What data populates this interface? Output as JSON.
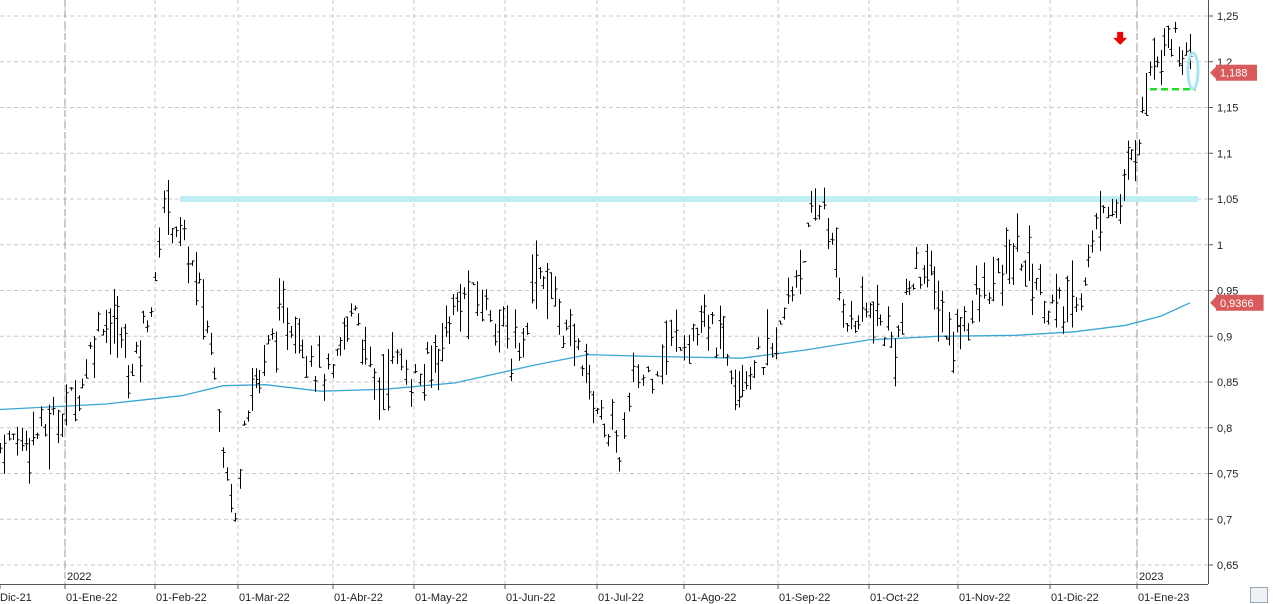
{
  "chart_data": {
    "type": "ohlc",
    "title": "",
    "xlabel": "",
    "ylabel": "",
    "ylim": [
      0.64,
      1.265
    ],
    "y_ticks": [
      {
        "value": 1.25,
        "label": "1,25"
      },
      {
        "value": 1.2,
        "label": "1,2"
      },
      {
        "value": 1.15,
        "label": "1,15"
      },
      {
        "value": 1.1,
        "label": "1,1"
      },
      {
        "value": 1.05,
        "label": "1,05"
      },
      {
        "value": 1.0,
        "label": "1"
      },
      {
        "value": 0.95,
        "label": "0,95"
      },
      {
        "value": 0.9,
        "label": "0,9"
      },
      {
        "value": 0.85,
        "label": "0,85"
      },
      {
        "value": 0.8,
        "label": "0,8"
      },
      {
        "value": 0.75,
        "label": "0,75"
      },
      {
        "value": 0.7,
        "label": "0,7"
      },
      {
        "value": 0.65,
        "label": "0,65"
      }
    ],
    "x_ticks": [
      "Dic-21",
      "01-Ene-22",
      "01-Feb-22",
      "01-Mar-22",
      "01-Abr-22",
      "01-May-22",
      "01-Jun-22",
      "01-Jul-22",
      "01-Ago-22",
      "01-Sep-22",
      "01-Oct-22",
      "01-Nov-22",
      "01-Dic-22",
      "01-Ene-23"
    ],
    "year_markers": [
      {
        "label": "2022",
        "date": "2022-01-01"
      },
      {
        "label": "2023",
        "date": "2023-01-01"
      }
    ],
    "grid": true,
    "close_series": [
      [
        "2021-12-20",
        0.78
      ],
      [
        "2021-12-24",
        0.79
      ],
      [
        "2021-12-29",
        0.8
      ],
      [
        "2022-01-03",
        0.83
      ],
      [
        "2022-01-07",
        0.85
      ],
      [
        "2022-01-11",
        0.9
      ],
      [
        "2022-01-14",
        0.92
      ],
      [
        "2022-01-19",
        0.91
      ],
      [
        "2022-01-24",
        0.86
      ],
      [
        "2022-01-28",
        0.91
      ],
      [
        "2022-02-01",
        0.95
      ],
      [
        "2022-02-04",
        1.05
      ],
      [
        "2022-02-08",
        1.02
      ],
      [
        "2022-02-12",
        0.99
      ],
      [
        "2022-02-16",
        0.95
      ],
      [
        "2022-02-21",
        0.87
      ],
      [
        "2022-02-24",
        0.78
      ],
      [
        "2022-02-28",
        0.7
      ],
      [
        "2022-03-03",
        0.82
      ],
      [
        "2022-03-08",
        0.86
      ],
      [
        "2022-03-12",
        0.9
      ],
      [
        "2022-03-17",
        0.92
      ],
      [
        "2022-03-22",
        0.9
      ],
      [
        "2022-03-26",
        0.87
      ],
      [
        "2022-04-01",
        0.85
      ],
      [
        "2022-04-05",
        0.9
      ],
      [
        "2022-04-09",
        0.94
      ],
      [
        "2022-04-13",
        0.88
      ],
      [
        "2022-04-18",
        0.84
      ],
      [
        "2022-04-23",
        0.88
      ],
      [
        "2022-04-28",
        0.86
      ],
      [
        "2022-05-03",
        0.85
      ],
      [
        "2022-05-08",
        0.88
      ],
      [
        "2022-05-13",
        0.92
      ],
      [
        "2022-05-18",
        0.94
      ],
      [
        "2022-05-24",
        0.94
      ],
      [
        "2022-05-30",
        0.92
      ],
      [
        "2022-06-03",
        0.88
      ],
      [
        "2022-06-07",
        0.9
      ],
      [
        "2022-06-11",
        0.98
      ],
      [
        "2022-06-16",
        0.95
      ],
      [
        "2022-06-21",
        0.9
      ],
      [
        "2022-06-26",
        0.88
      ],
      [
        "2022-07-01",
        0.82
      ],
      [
        "2022-07-05",
        0.8
      ],
      [
        "2022-07-09",
        0.77
      ],
      [
        "2022-07-14",
        0.85
      ],
      [
        "2022-07-19",
        0.86
      ],
      [
        "2022-07-24",
        0.88
      ],
      [
        "2022-07-29",
        0.9
      ],
      [
        "2022-08-04",
        0.9
      ],
      [
        "2022-08-09",
        0.91
      ],
      [
        "2022-08-14",
        0.89
      ],
      [
        "2022-08-19",
        0.86
      ],
      [
        "2022-08-24",
        0.87
      ],
      [
        "2022-08-30",
        0.88
      ],
      [
        "2022-09-03",
        0.92
      ],
      [
        "2022-09-07",
        0.97
      ],
      [
        "2022-09-12",
        1.02
      ],
      [
        "2022-09-16",
        1.05
      ],
      [
        "2022-09-20",
        0.97
      ],
      [
        "2022-09-25",
        0.91
      ],
      [
        "2022-09-30",
        0.93
      ],
      [
        "2022-10-05",
        0.91
      ],
      [
        "2022-10-10",
        0.89
      ],
      [
        "2022-10-15",
        0.95
      ],
      [
        "2022-10-20",
        0.98
      ],
      [
        "2022-10-25",
        0.94
      ],
      [
        "2022-10-29",
        0.89
      ],
      [
        "2022-11-03",
        0.92
      ],
      [
        "2022-11-08",
        0.94
      ],
      [
        "2022-11-14",
        0.96
      ],
      [
        "2022-11-19",
        0.99
      ],
      [
        "2022-11-24",
        0.98
      ],
      [
        "2022-11-29",
        0.94
      ],
      [
        "2022-12-03",
        0.93
      ],
      [
        "2022-12-07",
        0.93
      ],
      [
        "2022-12-12",
        0.95
      ],
      [
        "2022-12-16",
        1.0
      ],
      [
        "2022-12-20",
        1.05
      ],
      [
        "2022-12-26",
        1.04
      ],
      [
        "2022-12-30",
        1.09
      ],
      [
        "2023-01-03",
        1.14
      ],
      [
        "2023-01-06",
        1.2
      ],
      [
        "2023-01-10",
        1.22
      ],
      [
        "2023-01-14",
        1.23
      ],
      [
        "2023-01-18",
        1.21
      ],
      [
        "2023-01-21",
        1.188
      ]
    ],
    "moving_average": [
      [
        "2021-12-20",
        0.82
      ],
      [
        "2022-01-15",
        0.826
      ],
      [
        "2022-02-10",
        0.835
      ],
      [
        "2022-02-24",
        0.846
      ],
      [
        "2022-03-10",
        0.847
      ],
      [
        "2022-03-28",
        0.84
      ],
      [
        "2022-04-20",
        0.842
      ],
      [
        "2022-05-15",
        0.849
      ],
      [
        "2022-06-10",
        0.868
      ],
      [
        "2022-06-28",
        0.88
      ],
      [
        "2022-07-20",
        0.878
      ],
      [
        "2022-08-20",
        0.876
      ],
      [
        "2022-09-10",
        0.885
      ],
      [
        "2022-10-01",
        0.896
      ],
      [
        "2022-10-25",
        0.9
      ],
      [
        "2022-11-20",
        0.901
      ],
      [
        "2022-12-10",
        0.905
      ],
      [
        "2022-12-28",
        0.912
      ],
      [
        "2023-01-10",
        0.922
      ],
      [
        "2023-01-21",
        0.9366
      ]
    ],
    "annotations": {
      "resistance_level": 1.05,
      "support_level": 1.17,
      "last_price_label": "1,188",
      "last_price": 1.188,
      "ma_label": "0,9366",
      "ma_value": 0.9366,
      "arrow_date": "2022-12-26",
      "arrow_value": 1.225
    },
    "colors": {
      "bars": "#000000",
      "moving_average": "#3aa7d6",
      "resistance_band": "#bfeff5",
      "support_line": "#22dd22",
      "last_price_badge": "#d85a5a",
      "arrow": "#ee0000",
      "grid": "#c8c8c8",
      "year_line": "#999999"
    }
  }
}
